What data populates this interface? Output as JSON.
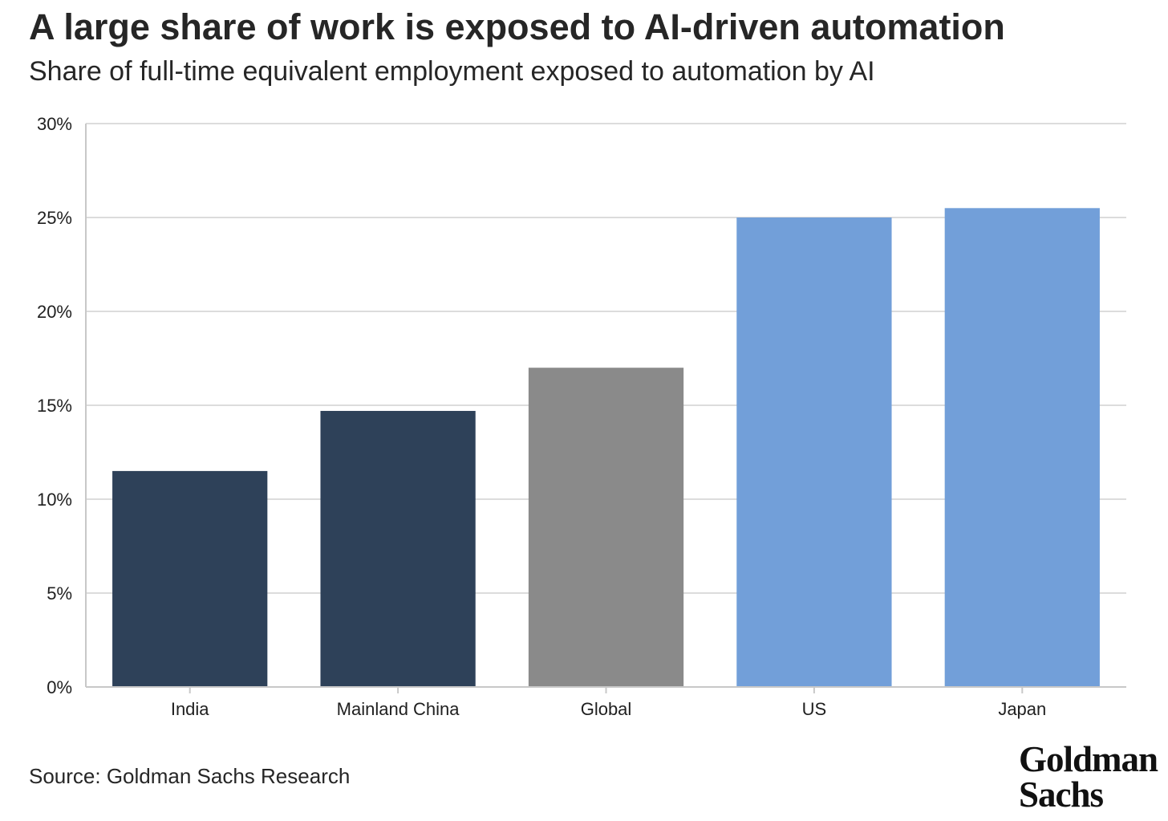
{
  "header": {
    "title": "A large share of work is exposed to AI-driven automation",
    "subtitle": "Share of full-time equivalent employment exposed to automation by AI"
  },
  "footer": {
    "source": "Source: Goldman Sachs Research",
    "logo_line1": "Goldman",
    "logo_line2": "Sachs"
  },
  "chart_data": {
    "type": "bar",
    "title": "A large share of work is exposed to AI-driven automation",
    "subtitle": "Share of full-time equivalent employment exposed to automation by AI",
    "categories": [
      "India",
      "Mainland China",
      "Global",
      "US",
      "Japan"
    ],
    "values": [
      11.5,
      14.7,
      17.0,
      25.0,
      25.5
    ],
    "unit": "%",
    "ylim": [
      0,
      30
    ],
    "yticks": [
      0,
      5,
      10,
      15,
      20,
      25,
      30
    ],
    "ytick_labels": [
      "0%",
      "5%",
      "10%",
      "15%",
      "20%",
      "25%",
      "30%"
    ],
    "xlabel": "",
    "ylabel": "",
    "grid": true,
    "legend": "none",
    "bar_colors": [
      "#2e4159",
      "#2e4159",
      "#8a8a8a",
      "#729fd9",
      "#729fd9"
    ],
    "grid_color": "#dcdcdc",
    "axis_color": "#c8c8c8"
  }
}
